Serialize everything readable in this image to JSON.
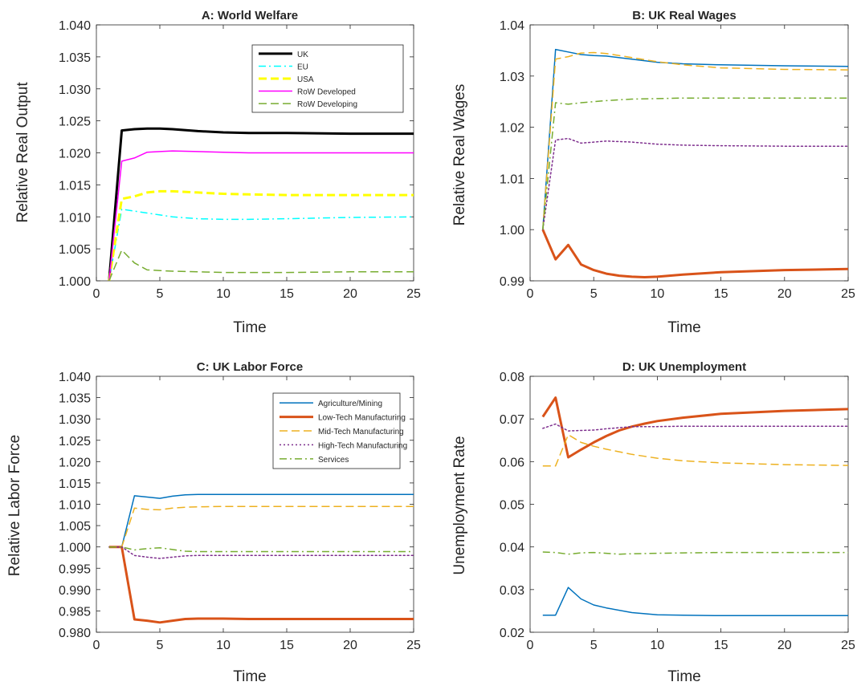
{
  "figure": {
    "background": "#ffffff"
  },
  "colors": {
    "uk": "#000000",
    "eu": "#00ffff",
    "usa": "#ffff00",
    "row_developed": "#ff00ff",
    "row_developing": "#77ac30",
    "agriculture": "#0072bd",
    "low_tech": "#d95319",
    "mid_tech": "#edb120",
    "high_tech": "#7e2f8e",
    "services": "#77ac30"
  },
  "chart_data": [
    {
      "type": "line",
      "title": "A: World Welfare",
      "xlabel": "Time",
      "ylabel": "Relative Real Output",
      "xlim": [
        0,
        25
      ],
      "ylim": [
        1.0,
        1.04
      ],
      "xticks": [
        "0",
        "5",
        "10",
        "15",
        "20",
        "25"
      ],
      "yticks": [
        "1.000",
        "1.005",
        "1.010",
        "1.015",
        "1.020",
        "1.025",
        "1.030",
        "1.035",
        "1.040"
      ],
      "grid": false,
      "legend_position": "top-right",
      "series": [
        {
          "name": "UK",
          "color": "#000000",
          "style": "solid",
          "width": 3,
          "x": [
            1,
            2,
            3,
            4,
            5,
            6,
            8,
            10,
            12,
            15,
            20,
            25
          ],
          "y": [
            1.0,
            1.0235,
            1.0237,
            1.0238,
            1.0238,
            1.0237,
            1.0234,
            1.0232,
            1.0231,
            1.0231,
            1.023,
            1.023
          ]
        },
        {
          "name": "EU",
          "color": "#00ffff",
          "style": "dashdot",
          "width": 1.5,
          "x": [
            1,
            2,
            3,
            4,
            5,
            6,
            8,
            10,
            12,
            15,
            20,
            25
          ],
          "y": [
            1.0,
            1.0112,
            1.0109,
            1.0106,
            1.0103,
            1.01,
            1.0097,
            1.0096,
            1.0096,
            1.0097,
            1.0099,
            1.01
          ]
        },
        {
          "name": "USA",
          "color": "#ffff00",
          "style": "dashed",
          "width": 3,
          "x": [
            1,
            2,
            3,
            4,
            5,
            6,
            8,
            10,
            12,
            15,
            20,
            25
          ],
          "y": [
            1.0,
            1.0128,
            1.0132,
            1.0138,
            1.014,
            1.014,
            1.0138,
            1.0136,
            1.0135,
            1.0134,
            1.0134,
            1.0134
          ]
        },
        {
          "name": "RoW Developed",
          "color": "#ff00ff",
          "style": "solid",
          "width": 1.5,
          "x": [
            1,
            2,
            3,
            4,
            5,
            6,
            8,
            10,
            12,
            15,
            20,
            25
          ],
          "y": [
            1.0,
            1.0187,
            1.0192,
            1.0201,
            1.0202,
            1.0203,
            1.0202,
            1.0201,
            1.02,
            1.02,
            1.02,
            1.02
          ]
        },
        {
          "name": "RoW Developing",
          "color": "#77ac30",
          "style": "dashed",
          "width": 1.5,
          "x": [
            1,
            2,
            3,
            4,
            5,
            6,
            8,
            10,
            12,
            15,
            20,
            25
          ],
          "y": [
            1.0,
            1.0048,
            1.0028,
            1.0017,
            1.0016,
            1.0015,
            1.0014,
            1.0013,
            1.0013,
            1.0013,
            1.0014,
            1.0014
          ]
        }
      ]
    },
    {
      "type": "line",
      "title": "B: UK Real Wages",
      "xlabel": "Time",
      "ylabel": "Relative Real Wages",
      "xlim": [
        0,
        25
      ],
      "ylim": [
        0.99,
        1.04
      ],
      "xticks": [
        "0",
        "5",
        "10",
        "15",
        "20",
        "25"
      ],
      "yticks": [
        "0.99",
        "1.00",
        "1.01",
        "1.02",
        "1.03",
        "1.04"
      ],
      "grid": false,
      "series": [
        {
          "color": "#0072bd",
          "style": "solid",
          "width": 1.5,
          "x": [
            1,
            2,
            3,
            4,
            5,
            6,
            8,
            10,
            12,
            15,
            20,
            25
          ],
          "y": [
            1.0,
            1.0352,
            1.0347,
            1.0342,
            1.034,
            1.0339,
            1.0333,
            1.0327,
            1.0324,
            1.0322,
            1.032,
            1.0319
          ]
        },
        {
          "color": "#d95319",
          "style": "solid",
          "width": 3,
          "x": [
            1,
            2,
            3,
            4,
            5,
            6,
            7,
            8,
            9,
            10,
            12,
            15,
            20,
            25
          ],
          "y": [
            1.0,
            0.9942,
            0.997,
            0.9932,
            0.9921,
            0.9914,
            0.991,
            0.9908,
            0.9907,
            0.9908,
            0.9912,
            0.9917,
            0.9921,
            0.9923
          ]
        },
        {
          "color": "#edb120",
          "style": "dashed",
          "width": 1.5,
          "x": [
            1,
            2,
            3,
            4,
            5,
            6,
            8,
            10,
            12,
            15,
            20,
            25
          ],
          "y": [
            1.0,
            1.0333,
            1.0338,
            1.0345,
            1.0346,
            1.0344,
            1.0336,
            1.0328,
            1.0322,
            1.0316,
            1.0313,
            1.0312
          ]
        },
        {
          "color": "#7e2f8e",
          "style": "dotted",
          "width": 1.5,
          "x": [
            1,
            2,
            3,
            4,
            5,
            6,
            8,
            10,
            12,
            15,
            20,
            25
          ],
          "y": [
            1.0,
            1.0175,
            1.0178,
            1.0169,
            1.0171,
            1.0173,
            1.0171,
            1.0167,
            1.0165,
            1.0164,
            1.0163,
            1.0163
          ]
        },
        {
          "color": "#77ac30",
          "style": "dashdot",
          "width": 1.5,
          "x": [
            1,
            2,
            3,
            4,
            5,
            6,
            8,
            10,
            12,
            15,
            20,
            25
          ],
          "y": [
            1.0,
            1.0248,
            1.0245,
            1.0248,
            1.025,
            1.0252,
            1.0255,
            1.0256,
            1.0257,
            1.0257,
            1.0257,
            1.0257
          ]
        }
      ]
    },
    {
      "type": "line",
      "title": "C: UK Labor Force",
      "xlabel": "Time",
      "ylabel": "Relative Labor Force",
      "xlim": [
        0,
        25
      ],
      "ylim": [
        0.98,
        1.04
      ],
      "xticks": [
        "0",
        "5",
        "10",
        "15",
        "20",
        "25"
      ],
      "yticks": [
        "0.980",
        "0.985",
        "0.990",
        "0.995",
        "1.000",
        "1.005",
        "1.010",
        "1.015",
        "1.020",
        "1.025",
        "1.030",
        "1.035",
        "1.040"
      ],
      "grid": false,
      "legend_position": "top-right",
      "series": [
        {
          "name": "Agriculture/Mining",
          "color": "#0072bd",
          "style": "solid",
          "width": 1.5,
          "x": [
            1,
            2,
            3,
            4,
            5,
            6,
            7,
            8,
            10,
            12,
            15,
            20,
            25
          ],
          "y": [
            1.0,
            1.0,
            1.012,
            1.0117,
            1.0114,
            1.0119,
            1.0122,
            1.0123,
            1.0123,
            1.0123,
            1.0123,
            1.0123,
            1.0123
          ]
        },
        {
          "name": "Low-Tech Manufacturing",
          "color": "#d95319",
          "style": "solid",
          "width": 3,
          "x": [
            1,
            2,
            3,
            4,
            5,
            6,
            7,
            8,
            10,
            12,
            15,
            20,
            25
          ],
          "y": [
            1.0,
            1.0,
            0.983,
            0.9827,
            0.9823,
            0.9827,
            0.9831,
            0.9832,
            0.9832,
            0.9831,
            0.9831,
            0.9831,
            0.9831
          ]
        },
        {
          "name": "Mid-Tech Manufacturing",
          "color": "#edb120",
          "style": "dashed",
          "width": 1.5,
          "x": [
            1,
            2,
            3,
            4,
            5,
            6,
            7,
            8,
            10,
            12,
            15,
            20,
            25
          ],
          "y": [
            1.0,
            1.0,
            1.0091,
            1.0088,
            1.0087,
            1.0091,
            1.0093,
            1.0094,
            1.0095,
            1.0095,
            1.0095,
            1.0095,
            1.0095
          ]
        },
        {
          "name": "High-Tech Manufacturing",
          "color": "#7e2f8e",
          "style": "dotted",
          "width": 1.5,
          "x": [
            1,
            2,
            3,
            4,
            5,
            6,
            7,
            8,
            10,
            12,
            15,
            20,
            25
          ],
          "y": [
            1.0,
            1.0,
            0.998,
            0.9976,
            0.9973,
            0.9976,
            0.9979,
            0.998,
            0.998,
            0.998,
            0.998,
            0.998,
            0.998
          ]
        },
        {
          "name": "Services",
          "color": "#77ac30",
          "style": "dashdot",
          "width": 1.5,
          "x": [
            1,
            2,
            3,
            4,
            5,
            6,
            7,
            8,
            10,
            12,
            15,
            20,
            25
          ],
          "y": [
            1.0,
            1.0,
            0.9993,
            0.9996,
            0.9998,
            0.9994,
            0.999,
            0.9989,
            0.9989,
            0.9989,
            0.9989,
            0.9989,
            0.9989
          ]
        }
      ]
    },
    {
      "type": "line",
      "title": "D: UK Unemployment",
      "xlabel": "Time",
      "ylabel": "Unemployment Rate",
      "xlim": [
        0,
        25
      ],
      "ylim": [
        0.02,
        0.08
      ],
      "xticks": [
        "0",
        "5",
        "10",
        "15",
        "20",
        "25"
      ],
      "yticks": [
        "0.02",
        "0.03",
        "0.04",
        "0.05",
        "0.06",
        "0.07",
        "0.08"
      ],
      "grid": false,
      "series": [
        {
          "color": "#0072bd",
          "style": "solid",
          "width": 1.5,
          "x": [
            1,
            2,
            3,
            4,
            5,
            6,
            8,
            10,
            12,
            15,
            20,
            25
          ],
          "y": [
            0.024,
            0.024,
            0.0305,
            0.0278,
            0.0264,
            0.0257,
            0.0246,
            0.0241,
            0.024,
            0.0239,
            0.0239,
            0.0239
          ]
        },
        {
          "color": "#d95319",
          "style": "solid",
          "width": 3,
          "x": [
            1,
            2,
            3,
            4,
            5,
            6,
            7,
            8,
            9,
            10,
            12,
            15,
            20,
            25
          ],
          "y": [
            0.0705,
            0.075,
            0.061,
            0.0628,
            0.0645,
            0.066,
            0.0673,
            0.0682,
            0.0689,
            0.0695,
            0.0703,
            0.0712,
            0.0719,
            0.0723
          ]
        },
        {
          "color": "#edb120",
          "style": "dashed",
          "width": 1.5,
          "x": [
            1,
            2,
            3,
            4,
            5,
            6,
            8,
            10,
            12,
            15,
            20,
            25
          ],
          "y": [
            0.059,
            0.059,
            0.0663,
            0.0645,
            0.0636,
            0.0629,
            0.0617,
            0.0608,
            0.0602,
            0.0597,
            0.0593,
            0.0591
          ]
        },
        {
          "color": "#7e2f8e",
          "style": "dotted",
          "width": 1.5,
          "x": [
            1,
            2,
            3,
            4,
            5,
            6,
            8,
            10,
            12,
            15,
            20,
            25
          ],
          "y": [
            0.0678,
            0.0688,
            0.0672,
            0.0673,
            0.0674,
            0.0677,
            0.0682,
            0.0682,
            0.0683,
            0.0683,
            0.0683,
            0.0683
          ]
        },
        {
          "color": "#77ac30",
          "style": "dashdot",
          "width": 1.5,
          "x": [
            1,
            2,
            3,
            4,
            5,
            6,
            7,
            8,
            10,
            12,
            15,
            20,
            25
          ],
          "y": [
            0.0388,
            0.0387,
            0.0383,
            0.0386,
            0.0387,
            0.0385,
            0.0383,
            0.0384,
            0.0385,
            0.0386,
            0.0387,
            0.0387,
            0.0387
          ]
        }
      ]
    }
  ]
}
